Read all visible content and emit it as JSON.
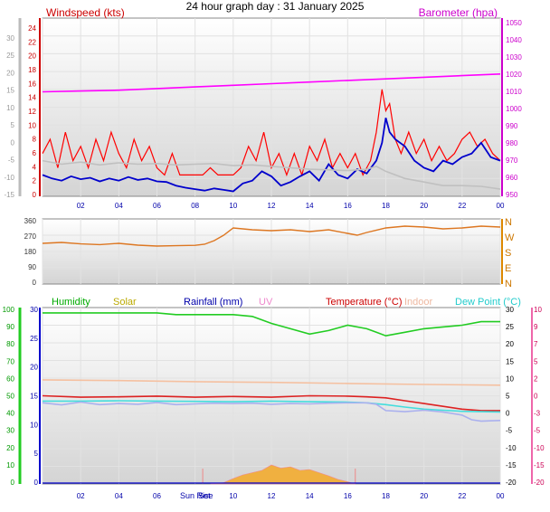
{
  "title": "24 hour graph day : 31 January 2025",
  "chart_data": [
    {
      "type": "line",
      "panel": "wind-baro",
      "xticks": [
        "02",
        "04",
        "06",
        "08",
        "10",
        "12",
        "14",
        "16",
        "18",
        "20",
        "22",
        "00"
      ],
      "left_axis": {
        "label": "Windspeed (kts)",
        "ticks": [
          "0",
          "2",
          "4",
          "6",
          "8",
          "10",
          "12",
          "14",
          "16",
          "18",
          "20",
          "22",
          "24"
        ],
        "range": [
          0,
          25
        ],
        "color": "#cc0000"
      },
      "outer_left_axis": {
        "ticks": [
          "-15",
          "-10",
          "-5",
          "0",
          "5",
          "10",
          "15",
          "20",
          "25",
          "30"
        ],
        "range": [
          -15,
          30
        ],
        "color": "#9a9a9a"
      },
      "right_axis": {
        "label": "Barometer (hpa)",
        "ticks": [
          "950",
          "960",
          "970",
          "980",
          "990",
          "1000",
          "1010",
          "1020",
          "1030",
          "1040",
          "1050"
        ],
        "range": [
          945,
          1055
        ],
        "color": "#cc00cc"
      },
      "series": [
        {
          "key": "gust",
          "color": "#ff0000",
          "x": [
            0,
            0.4,
            0.8,
            1.2,
            1.6,
            2.0,
            2.4,
            2.8,
            3.2,
            3.6,
            4.0,
            4.4,
            4.8,
            5.2,
            5.6,
            6.0,
            6.4,
            6.8,
            7.2,
            7.6,
            8.0,
            8.4,
            8.8,
            9.2,
            9.6,
            10.0,
            10.4,
            10.8,
            11.2,
            11.6,
            12.0,
            12.4,
            12.8,
            13.2,
            13.6,
            14.0,
            14.4,
            14.8,
            15.2,
            15.6,
            16.0,
            16.4,
            16.8,
            17.2,
            17.5,
            17.8,
            18.0,
            18.2,
            18.5,
            18.8,
            19.2,
            19.6,
            20.0,
            20.4,
            20.8,
            21.2,
            21.6,
            22.0,
            22.4,
            22.8,
            23.2,
            23.6,
            24.0
          ],
          "y": [
            6,
            8,
            4,
            9,
            5,
            7,
            4,
            8,
            5,
            9,
            6,
            4,
            8,
            5,
            7,
            4,
            3,
            6,
            3,
            3,
            3,
            3,
            4,
            3,
            3,
            3,
            4,
            7,
            5,
            9,
            4,
            6,
            3,
            6,
            3,
            7,
            5,
            8,
            4,
            6,
            4,
            6,
            3,
            5,
            9,
            15,
            12,
            13,
            8,
            6,
            9,
            6,
            8,
            5,
            7,
            5,
            6,
            8,
            9,
            7,
            8,
            6,
            5
          ]
        },
        {
          "key": "avg",
          "color": "#0000cc",
          "x": [
            0,
            0.5,
            1.0,
            1.5,
            2.0,
            2.5,
            3.0,
            3.5,
            4.0,
            4.5,
            5.0,
            5.5,
            6.0,
            6.5,
            7.0,
            7.5,
            8.0,
            8.5,
            9.0,
            9.5,
            10.0,
            10.5,
            11.0,
            11.5,
            12.0,
            12.5,
            13.0,
            13.5,
            14.0,
            14.5,
            15.0,
            15.5,
            16.0,
            16.5,
            17.0,
            17.5,
            17.8,
            18.0,
            18.2,
            18.5,
            19.0,
            19.5,
            20.0,
            20.5,
            21.0,
            21.5,
            22.0,
            22.5,
            23.0,
            23.5,
            24.0
          ],
          "y": [
            3,
            2.5,
            2.2,
            2.8,
            2.4,
            2.6,
            2.1,
            2.5,
            2.2,
            2.7,
            2.3,
            2.5,
            2.1,
            2.0,
            1.5,
            1.2,
            1.0,
            0.8,
            1.1,
            0.9,
            0.7,
            1.8,
            2.2,
            3.5,
            2.8,
            1.5,
            2.0,
            2.8,
            3.5,
            2.2,
            4.5,
            3.0,
            2.5,
            3.8,
            3.2,
            5.0,
            7.5,
            11,
            9,
            8,
            7,
            5,
            4,
            3.5,
            5,
            4.5,
            5.5,
            6,
            7.5,
            5.5,
            5
          ]
        },
        {
          "key": "wind-chill",
          "color": "#c0c0c0",
          "x": [
            0,
            1,
            2,
            3,
            4,
            5,
            6,
            7,
            8,
            9,
            10,
            11,
            12,
            13,
            14,
            15,
            16,
            17,
            17.5,
            18,
            19,
            20,
            21,
            22,
            23,
            23.5,
            24
          ],
          "y": [
            5,
            4.5,
            4.8,
            4.4,
            4.7,
            4.5,
            4.6,
            4.4,
            4.5,
            4.6,
            4.3,
            4.4,
            4.2,
            4.0,
            3.8,
            3.7,
            3.6,
            3.8,
            4.2,
            3.5,
            2.5,
            2.0,
            1.5,
            1.5,
            1.4,
            1.2,
            1.0
          ]
        },
        {
          "key": "barometer",
          "color": "#ff00ff",
          "x": [
            0,
            2,
            4,
            6,
            8,
            10,
            12,
            14,
            16,
            18,
            20,
            22,
            24
          ],
          "y": [
            1009.5,
            1010,
            1010.5,
            1011.5,
            1012.5,
            1013.5,
            1014.5,
            1015.5,
            1016.5,
            1017.5,
            1018.5,
            1019.5,
            1020.5
          ]
        }
      ]
    },
    {
      "type": "line",
      "panel": "wind-direction",
      "left_axis": {
        "ticks": [
          "0",
          "90",
          "180",
          "270",
          "360"
        ],
        "range": [
          0,
          360
        ]
      },
      "right_axis": {
        "ticks": [
          "N",
          "W",
          "S",
          "E",
          "N"
        ]
      },
      "series": [
        {
          "key": "direction",
          "color": "#dd7722",
          "x": [
            0,
            1,
            2,
            3,
            4,
            5,
            6,
            7,
            8,
            8.5,
            9,
            9.5,
            10,
            10.5,
            11,
            12,
            13,
            14,
            15,
            16,
            16.5,
            17,
            18,
            19,
            20,
            21,
            22,
            23,
            24
          ],
          "y": [
            225,
            230,
            222,
            218,
            225,
            215,
            210,
            212,
            214,
            220,
            240,
            270,
            310,
            305,
            300,
            295,
            300,
            290,
            300,
            280,
            270,
            285,
            310,
            320,
            315,
            305,
            310,
            320,
            315
          ]
        }
      ]
    },
    {
      "type": "line",
      "panel": "temperature-humidity",
      "labels": {
        "humidity": "Humidity",
        "solar": "Solar",
        "rainfall": "Rainfall (mm)",
        "uv": "UV",
        "temperature": "Temperature (°C)",
        "indoor": "Indoor",
        "dew_point": "Dew Point (°C)"
      },
      "humidity_axis": {
        "ticks": [
          "0",
          "10",
          "20",
          "30",
          "40",
          "50",
          "60",
          "70",
          "80",
          "90",
          "100"
        ],
        "range": [
          0,
          100
        ]
      },
      "rain_axis": {
        "ticks": [
          "0",
          "5",
          "10",
          "15",
          "20",
          "25",
          "30"
        ],
        "range": [
          0,
          30
        ]
      },
      "temp_axis": {
        "ticks": [
          "-20",
          "-15",
          "-10",
          "-5",
          "0",
          "5",
          "10",
          "15",
          "20",
          "25",
          "30"
        ],
        "range": [
          -20,
          30
        ]
      },
      "temp_axis_right": {
        "ticks": [
          "-20",
          "-15",
          "-10",
          "-5",
          "-3",
          "0",
          "2",
          "5",
          "7",
          "9",
          "10"
        ]
      },
      "x_special_labels": [
        "Sun Rise",
        "Set"
      ],
      "series": [
        {
          "key": "humidity",
          "color": "#22cc22",
          "x": [
            0,
            1,
            2,
            3,
            4,
            5,
            6,
            7,
            8,
            9,
            10,
            11,
            11.5,
            12,
            13,
            14,
            15,
            16,
            17,
            17.5,
            18,
            19,
            20,
            21,
            22,
            23,
            24
          ],
          "y": [
            97,
            97,
            97,
            97,
            97,
            97,
            97,
            96,
            96,
            96,
            96,
            95,
            93,
            91,
            88,
            85,
            87,
            90,
            88,
            86,
            84,
            86,
            88,
            89,
            90,
            92,
            92
          ]
        },
        {
          "key": "indoor",
          "color": "#f5c0a0",
          "x": [
            0,
            4,
            8,
            12,
            16,
            20,
            24
          ],
          "y": [
            9.5,
            9.3,
            9.0,
            8.8,
            8.5,
            8.2,
            8.0
          ]
        },
        {
          "key": "temperature",
          "color": "#dd2222",
          "x": [
            0,
            2,
            4,
            6,
            8,
            10,
            12,
            14,
            16,
            17,
            18,
            19,
            20,
            21,
            22,
            23,
            24
          ],
          "y": [
            5,
            4.6,
            4.7,
            4.9,
            4.6,
            4.8,
            4.6,
            5,
            4.9,
            4.7,
            4.4,
            3.6,
            2.8,
            2.0,
            1.2,
            0.8,
            0.8
          ]
        },
        {
          "key": "dew-point",
          "color": "#44dddd",
          "x": [
            0,
            2,
            4,
            6,
            8,
            10,
            12,
            14,
            16,
            17,
            18,
            19,
            20,
            21,
            22,
            23,
            24
          ],
          "y": [
            3.5,
            3.5,
            3.6,
            3.5,
            3.4,
            3.3,
            3.5,
            3.3,
            3.2,
            3.0,
            2.5,
            1.8,
            1.2,
            0.9,
            0.6,
            0.5,
            0.4
          ]
        },
        {
          "key": "humidity-blue",
          "color": "#aab0ee",
          "x": [
            0,
            1,
            2,
            3,
            4,
            5,
            6,
            7,
            8,
            9,
            10,
            11,
            12,
            13,
            14,
            15,
            16,
            17,
            17.5,
            18,
            19,
            20,
            21,
            22,
            22.5,
            23,
            24
          ],
          "y": [
            3,
            2.4,
            3.2,
            2.5,
            2.8,
            2.6,
            3.1,
            2.5,
            2.7,
            2.9,
            2.8,
            2.9,
            2.6,
            2.8,
            2.7,
            2.9,
            3.0,
            3.0,
            2.6,
            0.8,
            0.5,
            0.9,
            0.4,
            -0.5,
            -1.8,
            -2.2,
            -2.0
          ]
        },
        {
          "key": "solar",
          "color": "#f0b040",
          "x": [
            8.8,
            9.5,
            10,
            10.5,
            11,
            11.5,
            12,
            12.5,
            13,
            13.5,
            14,
            14.5,
            15,
            15.5,
            16,
            16.4
          ],
          "y": [
            0,
            0.3,
            1.2,
            2.0,
            2.5,
            3.0,
            4.2,
            3.5,
            3.8,
            3.0,
            3.2,
            2.5,
            1.8,
            1.0,
            0.5,
            0
          ]
        }
      ]
    }
  ]
}
